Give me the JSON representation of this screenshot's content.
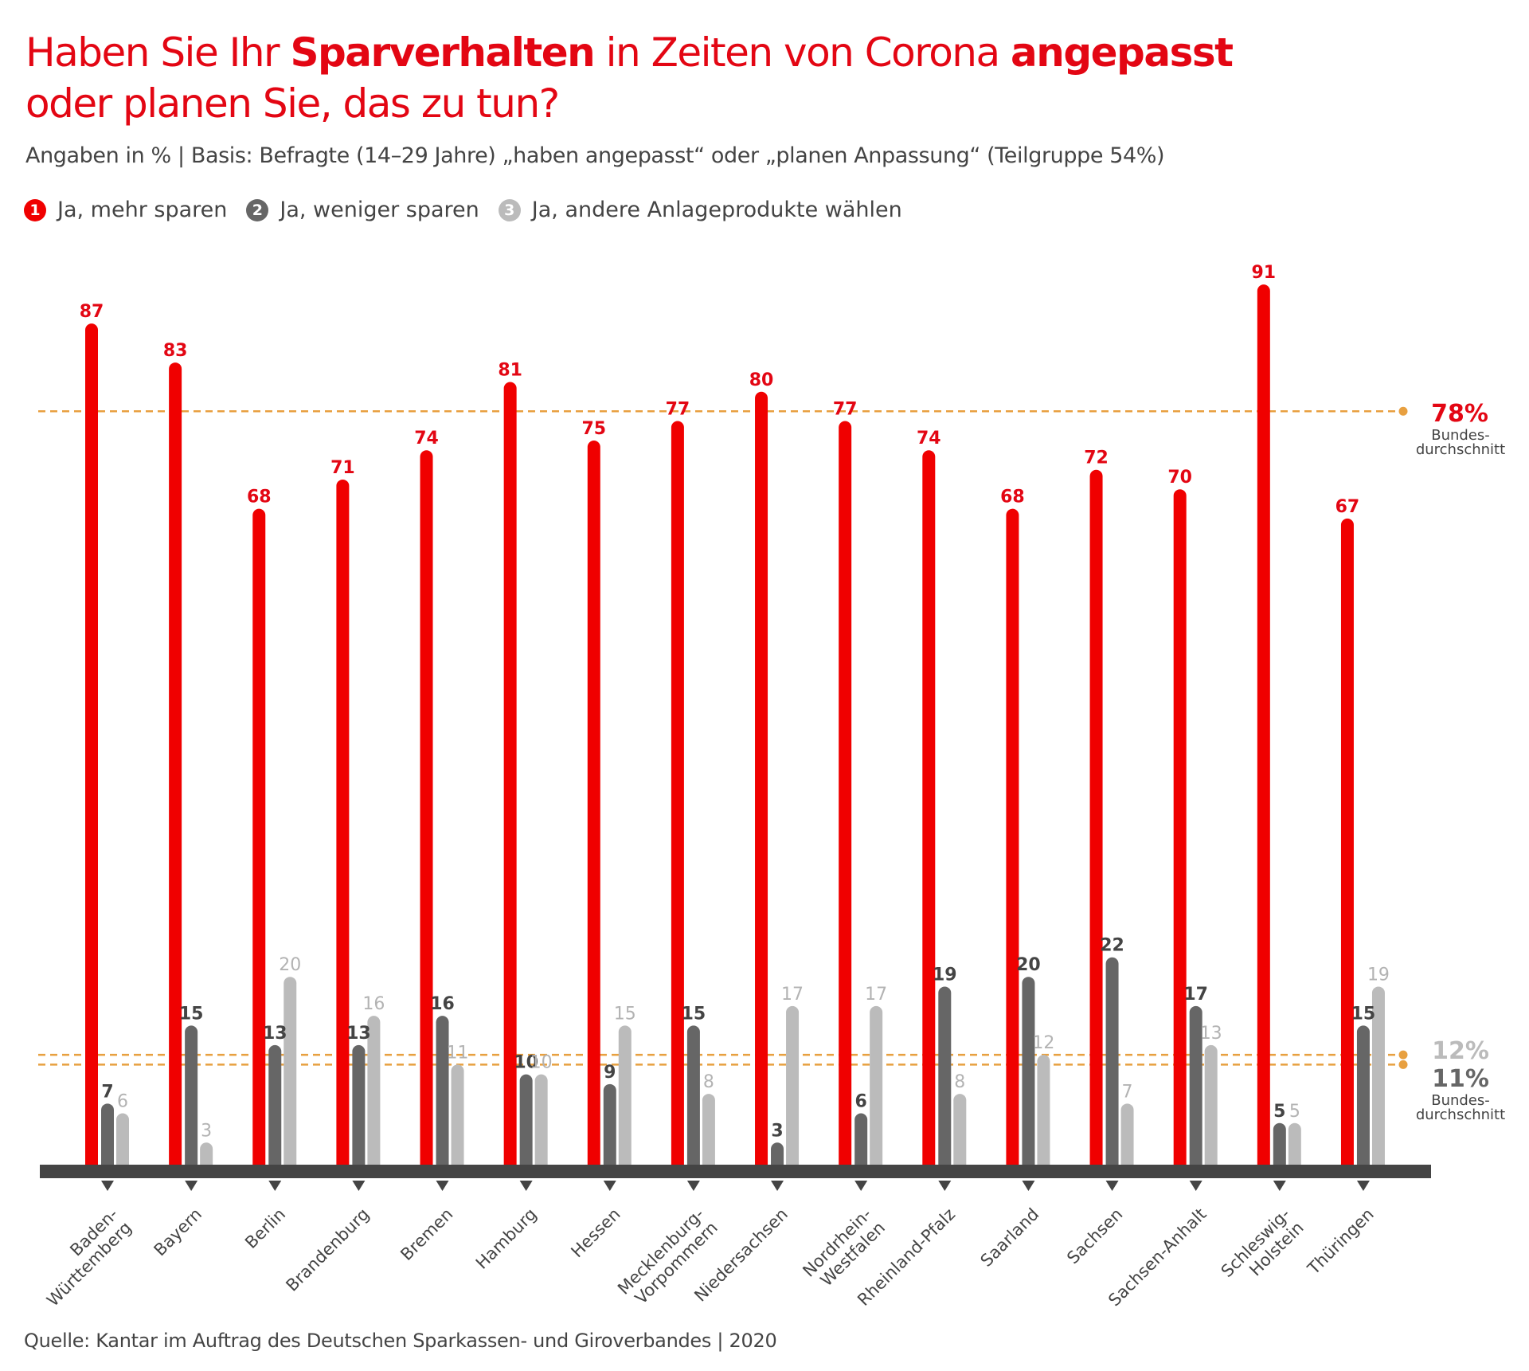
{
  "header": {
    "title_parts": [
      {
        "text": "Haben Sie Ihr ",
        "bold": false
      },
      {
        "text": "Sparverhalten",
        "bold": true
      },
      {
        "text": " in Zeiten von Corona ",
        "bold": false
      },
      {
        "text": "angepasst",
        "bold": true
      }
    ],
    "title_line2": "oder planen Sie, das zu tun?",
    "subtitle": "Angaben in % | Basis: Befragte (14–29 Jahre) „haben angepasst“ oder „planen Anpassung“ (Teilgruppe 54%)"
  },
  "legend": [
    {
      "number": "1",
      "label": "Ja, mehr sparen",
      "color": "#f00000"
    },
    {
      "number": "2",
      "label": "Ja, weniger sparen",
      "color": "#666666"
    },
    {
      "number": "3",
      "label": "Ja, andere Anlageprodukte wählen",
      "color": "#bbbbbb"
    }
  ],
  "source": "Quelle: Kantar im Auftrag des Deutschen Sparkassen- und Giroverbandes | 2020",
  "colors": {
    "red": "#f00000",
    "red_text": "#e30613",
    "dark": "#666666",
    "dark_text": "#444444",
    "light": "#bbbbbb",
    "light_text": "#b3b3b3",
    "axis": "#444444",
    "average_line": "#e8a040"
  },
  "chart_data": {
    "type": "bar",
    "title": "Haben Sie Ihr Sparverhalten in Zeiten von Corona angepasst oder planen Sie, das zu tun?",
    "subtitle": "Angaben in % | Basis: Befragte (14–29 Jahre) „haben angepasst“ oder „planen Anpassung“ (Teilgruppe 54%)",
    "xlabel": "",
    "ylabel": "",
    "ylim": [
      0,
      100
    ],
    "grid": false,
    "legend_position": "top-left",
    "categories": [
      "Baden-\nWürttemberg",
      "Bayern",
      "Berlin",
      "Brandenburg",
      "Bremen",
      "Hamburg",
      "Hessen",
      "Mecklenburg-\nVorpommern",
      "Niedersachsen",
      "Nordrhein-\nWestfalen",
      "Rheinland-Pfalz",
      "Saarland",
      "Sachsen",
      "Sachsen-Anhalt",
      "Schleswig-\nHolstein",
      "Thüringen"
    ],
    "series": [
      {
        "name": "Ja, mehr sparen",
        "values": [
          87,
          83,
          68,
          71,
          74,
          81,
          75,
          77,
          80,
          77,
          74,
          68,
          72,
          70,
          91,
          67
        ]
      },
      {
        "name": "Ja, weniger sparen",
        "values": [
          7,
          15,
          13,
          13,
          16,
          10,
          9,
          15,
          3,
          6,
          19,
          20,
          22,
          17,
          5,
          15
        ]
      },
      {
        "name": "Ja, andere Anlageprodukte wählen",
        "values": [
          6,
          3,
          20,
          16,
          11,
          10,
          15,
          8,
          17,
          17,
          8,
          12,
          7,
          13,
          5,
          19
        ]
      }
    ],
    "reference_lines": [
      {
        "series": "Ja, mehr sparen",
        "value": 78,
        "label": "78%",
        "caption": "Bundes-\ndurchschnitt"
      },
      {
        "series": "Ja, andere Anlageprodukte wählen",
        "value": 12,
        "label": "12%",
        "caption": ""
      },
      {
        "series": "Ja, weniger sparen",
        "value": 11,
        "label": "11%",
        "caption": "Bundes-\ndurchschnitt"
      }
    ]
  }
}
